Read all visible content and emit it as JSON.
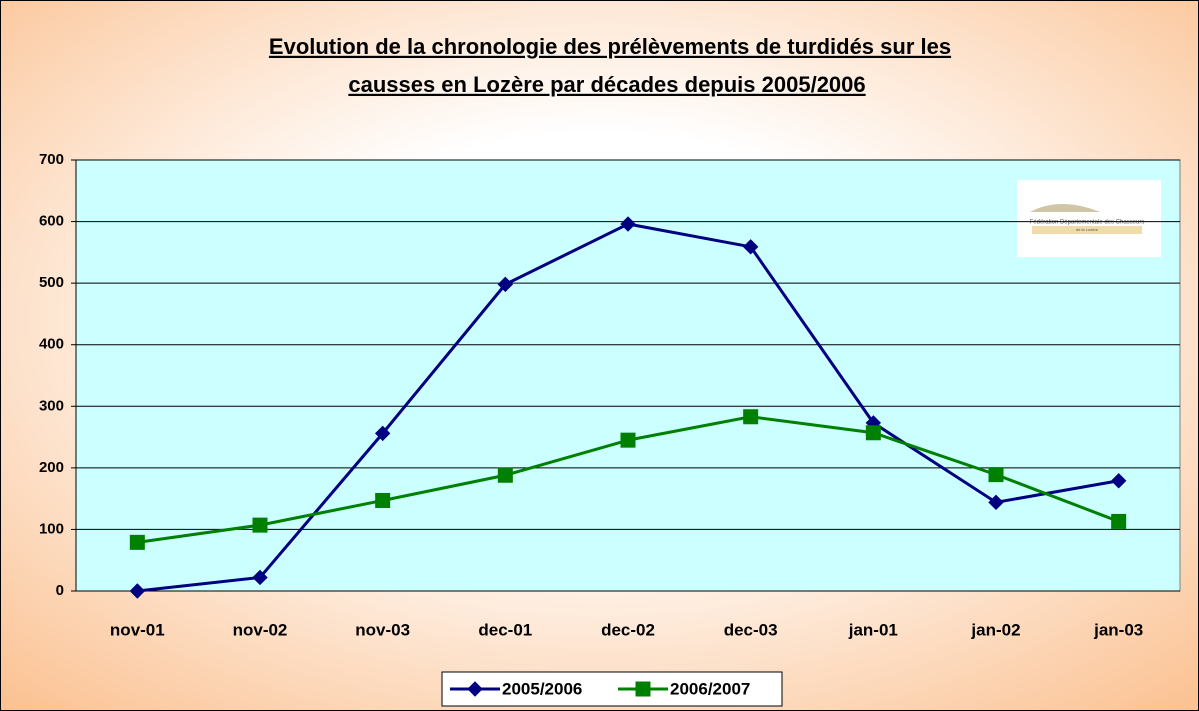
{
  "chart_data": {
    "type": "line",
    "title": [
      "Evolution de la chronologie des prélèvements de turdidés sur les",
      "causses en Lozère par décades depuis 2005/2006"
    ],
    "categories": [
      "nov-01",
      "nov-02",
      "nov-03",
      "dec-01",
      "dec-02",
      "dec-03",
      "jan-01",
      "jan-02",
      "jan-03"
    ],
    "series": [
      {
        "name": "2005/2006",
        "color": "#000080",
        "marker": "diamond",
        "values": [
          0,
          22,
          256,
          498,
          596,
          559,
          273,
          144,
          179
        ]
      },
      {
        "name": "2006/2007",
        "color": "#008000",
        "marker": "square",
        "values": [
          79,
          107,
          147,
          188,
          245,
          283,
          257,
          189,
          113
        ]
      }
    ],
    "ylim": [
      0,
      700
    ],
    "yticks": [
      0,
      100,
      200,
      300,
      400,
      500,
      600,
      700
    ],
    "grid": true,
    "legend": "bottom",
    "logo": {
      "line1": "Fédération Départementale des Chasseurs",
      "line2": "de la Lozère"
    }
  }
}
